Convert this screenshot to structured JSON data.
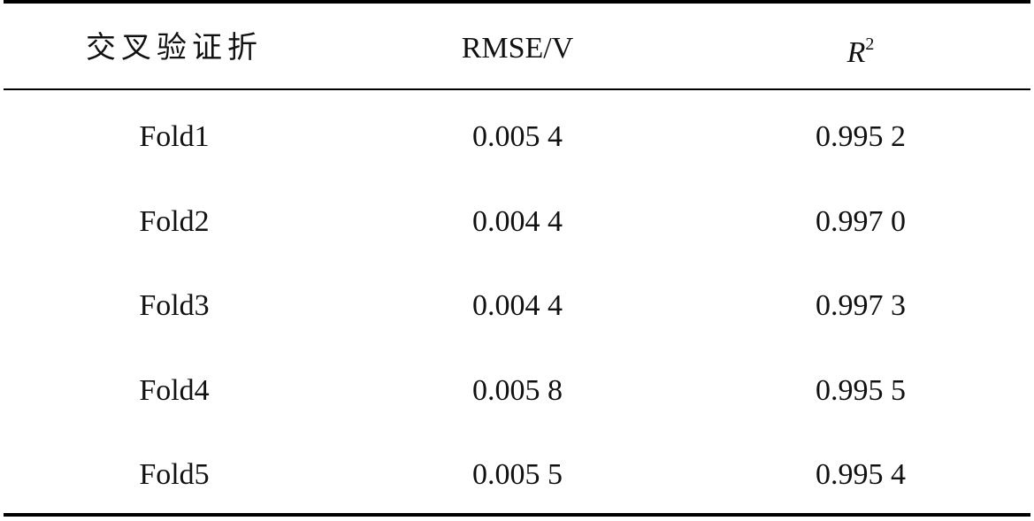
{
  "table": {
    "header": [
      "交叉验证折",
      "RMSE/V",
      {
        "base": "R",
        "sup": "2"
      }
    ],
    "rows": [
      [
        "Fold1",
        "0.005 4",
        "0.995 2"
      ],
      [
        "Fold2",
        "0.004 4",
        "0.997 0"
      ],
      [
        "Fold3",
        "0.004 4",
        "0.997 3"
      ],
      [
        "Fold4",
        "0.005 8",
        "0.995 5"
      ],
      [
        "Fold5",
        "0.005 5",
        "0.995 4"
      ]
    ]
  }
}
